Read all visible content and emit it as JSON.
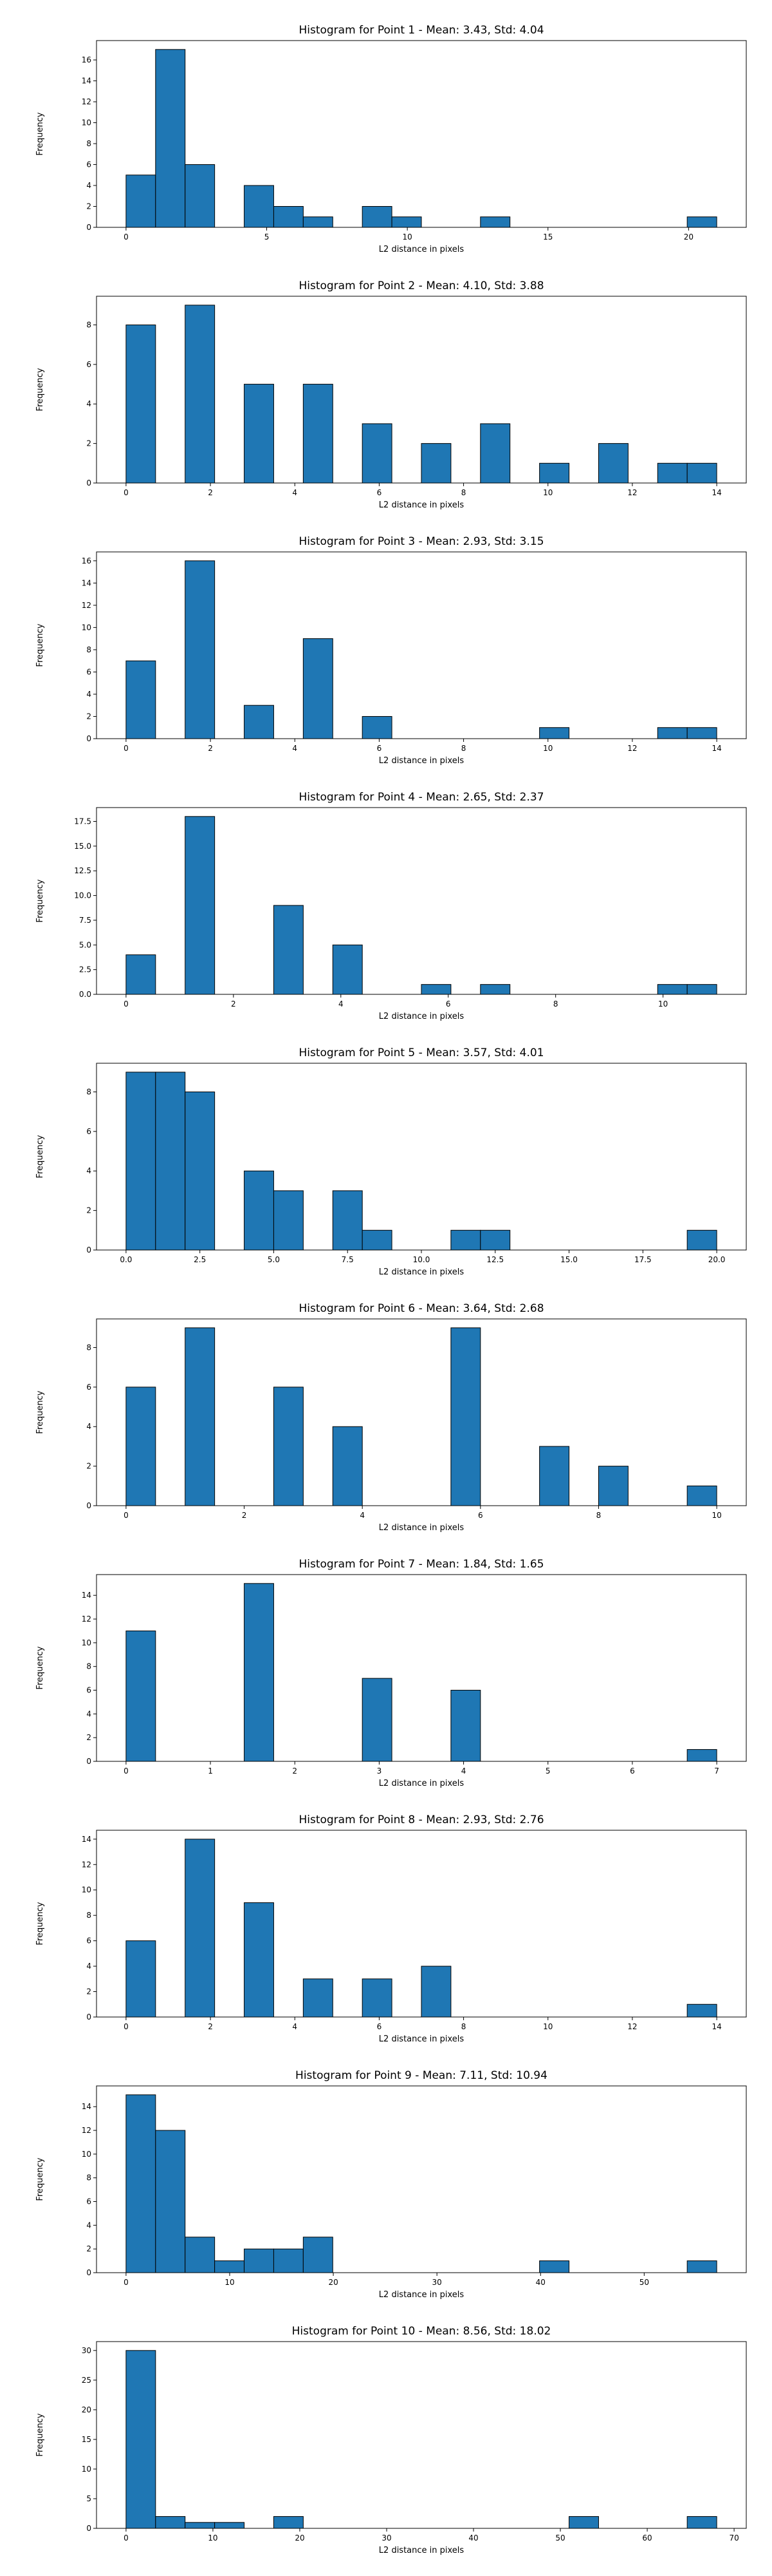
{
  "style": {
    "bar_color": "#1f77b4",
    "edge_color": "#000000",
    "background": "#ffffff"
  },
  "chart_data": [
    {
      "type": "bar",
      "title": "Histogram for Point 1 - Mean: 3.43, Std: 4.04",
      "xlabel": "L2 distance in pixels",
      "ylabel": "Frequency",
      "xlim": [
        -1.05,
        22.05
      ],
      "ylim": [
        0,
        17.85
      ],
      "xticks": [
        0,
        5,
        10,
        15,
        20
      ],
      "xtick_labels": [
        "0",
        "5",
        "10",
        "15",
        "20"
      ],
      "yticks": [
        0,
        2,
        4,
        6,
        8,
        10,
        12,
        14,
        16
      ],
      "ytick_labels": [
        "0",
        "2",
        "4",
        "6",
        "8",
        "10",
        "12",
        "14",
        "16"
      ],
      "bins": [
        0,
        1.05,
        2.1,
        3.15,
        4.2,
        5.25,
        6.3,
        7.35,
        8.4,
        9.45,
        10.5,
        11.55,
        12.6,
        13.65,
        14.7,
        15.75,
        16.8,
        17.85,
        18.9,
        19.95,
        21
      ],
      "counts": [
        5,
        17,
        6,
        0,
        4,
        2,
        1,
        0,
        2,
        1,
        0,
        0,
        1,
        0,
        0,
        0,
        0,
        0,
        0,
        1
      ],
      "grid": false
    },
    {
      "type": "bar",
      "title": "Histogram for Point 2 - Mean: 4.10, Std: 3.88",
      "xlabel": "L2 distance in pixels",
      "ylabel": "Frequency",
      "xlim": [
        -0.7,
        14.7
      ],
      "ylim": [
        0,
        9.45
      ],
      "xticks": [
        0,
        2,
        4,
        6,
        8,
        10,
        12,
        14
      ],
      "xtick_labels": [
        "0",
        "2",
        "4",
        "6",
        "8",
        "10",
        "12",
        "14"
      ],
      "yticks": [
        0,
        2,
        4,
        6,
        8
      ],
      "ytick_labels": [
        "0",
        "2",
        "4",
        "6",
        "8"
      ],
      "bins": [
        0,
        0.7,
        1.4,
        2.1,
        2.8,
        3.5,
        4.2,
        4.9,
        5.6,
        6.3,
        7.0,
        7.7,
        8.4,
        9.1,
        9.8,
        10.5,
        11.2,
        11.9,
        12.6,
        13.3,
        14.0
      ],
      "counts": [
        8,
        0,
        9,
        0,
        5,
        0,
        5,
        0,
        3,
        0,
        2,
        0,
        3,
        0,
        1,
        0,
        2,
        0,
        1,
        1
      ],
      "grid": false
    },
    {
      "type": "bar",
      "title": "Histogram for Point 3 - Mean: 2.93, Std: 3.15",
      "xlabel": "L2 distance in pixels",
      "ylabel": "Frequency",
      "xlim": [
        -0.7,
        14.7
      ],
      "ylim": [
        0,
        16.8
      ],
      "xticks": [
        0,
        2,
        4,
        6,
        8,
        10,
        12,
        14
      ],
      "xtick_labels": [
        "0",
        "2",
        "4",
        "6",
        "8",
        "10",
        "12",
        "14"
      ],
      "yticks": [
        0,
        2,
        4,
        6,
        8,
        10,
        12,
        14,
        16
      ],
      "ytick_labels": [
        "0",
        "2",
        "4",
        "6",
        "8",
        "10",
        "12",
        "14",
        "16"
      ],
      "bins": [
        0,
        0.7,
        1.4,
        2.1,
        2.8,
        3.5,
        4.2,
        4.9,
        5.6,
        6.3,
        7.0,
        7.7,
        8.4,
        9.1,
        9.8,
        10.5,
        11.2,
        11.9,
        12.6,
        13.3,
        14.0
      ],
      "counts": [
        7,
        0,
        16,
        0,
        3,
        0,
        9,
        0,
        2,
        0,
        0,
        0,
        0,
        0,
        1,
        0,
        0,
        0,
        1,
        1
      ],
      "grid": false
    },
    {
      "type": "bar",
      "title": "Histogram for Point 4 - Mean: 2.65, Std: 2.37",
      "xlabel": "L2 distance in pixels",
      "ylabel": "Frequency",
      "xlim": [
        -0.55,
        11.55
      ],
      "ylim": [
        0,
        18.9
      ],
      "xticks": [
        0,
        2,
        4,
        6,
        8,
        10
      ],
      "xtick_labels": [
        "0",
        "2",
        "4",
        "6",
        "8",
        "10"
      ],
      "yticks": [
        0,
        2.5,
        5,
        7.5,
        10,
        12.5,
        15,
        17.5
      ],
      "ytick_labels": [
        "0.0",
        "2.5",
        "5.0",
        "7.5",
        "10.0",
        "12.5",
        "15.0",
        "17.5"
      ],
      "bins": [
        0,
        0.55,
        1.1,
        1.65,
        2.2,
        2.75,
        3.3,
        3.85,
        4.4,
        4.95,
        5.5,
        6.05,
        6.6,
        7.15,
        7.7,
        8.25,
        8.8,
        9.35,
        9.9,
        10.45,
        11.0
      ],
      "counts": [
        4,
        0,
        18,
        0,
        0,
        9,
        0,
        5,
        0,
        0,
        1,
        0,
        1,
        0,
        0,
        0,
        0,
        0,
        1,
        1
      ],
      "grid": false
    },
    {
      "type": "bar",
      "title": "Histogram for Point 5 - Mean: 3.57, Std: 4.01",
      "xlabel": "L2 distance in pixels",
      "ylabel": "Frequency",
      "xlim": [
        -1.0,
        21.0
      ],
      "ylim": [
        0,
        9.45
      ],
      "xticks": [
        0,
        2.5,
        5,
        7.5,
        10,
        12.5,
        15,
        17.5,
        20
      ],
      "xtick_labels": [
        "0.0",
        "2.5",
        "5.0",
        "7.5",
        "10.0",
        "12.5",
        "15.0",
        "17.5",
        "20.0"
      ],
      "yticks": [
        0,
        2,
        4,
        6,
        8
      ],
      "ytick_labels": [
        "0",
        "2",
        "4",
        "6",
        "8"
      ],
      "bins": [
        0,
        1,
        2,
        3,
        4,
        5,
        6,
        7,
        8,
        9,
        10,
        11,
        12,
        13,
        14,
        15,
        16,
        17,
        18,
        19,
        20
      ],
      "counts": [
        9,
        9,
        8,
        0,
        4,
        3,
        0,
        3,
        1,
        0,
        0,
        1,
        1,
        0,
        0,
        0,
        0,
        0,
        0,
        1
      ],
      "grid": false
    },
    {
      "type": "bar",
      "title": "Histogram for Point 6 - Mean: 3.64, Std: 2.68",
      "xlabel": "L2 distance in pixels",
      "ylabel": "Frequency",
      "xlim": [
        -0.5,
        10.5
      ],
      "ylim": [
        0,
        9.45
      ],
      "xticks": [
        0,
        2,
        4,
        6,
        8,
        10
      ],
      "xtick_labels": [
        "0",
        "2",
        "4",
        "6",
        "8",
        "10"
      ],
      "yticks": [
        0,
        2,
        4,
        6,
        8
      ],
      "ytick_labels": [
        "0",
        "2",
        "4",
        "6",
        "8"
      ],
      "bins": [
        0,
        0.5,
        1.0,
        1.5,
        2.0,
        2.5,
        3.0,
        3.5,
        4.0,
        4.5,
        5.0,
        5.5,
        6.0,
        6.5,
        7.0,
        7.5,
        8.0,
        8.5,
        9.0,
        9.5,
        10.0
      ],
      "counts": [
        6,
        0,
        9,
        0,
        0,
        6,
        0,
        4,
        0,
        0,
        0,
        9,
        0,
        0,
        3,
        0,
        2,
        0,
        0,
        1
      ],
      "grid": false
    },
    {
      "type": "bar",
      "title": "Histogram for Point 7 - Mean: 1.84, Std: 1.65",
      "xlabel": "L2 distance in pixels",
      "ylabel": "Frequency",
      "xlim": [
        -0.35,
        7.35
      ],
      "ylim": [
        0,
        15.75
      ],
      "xticks": [
        0,
        1,
        2,
        3,
        4,
        5,
        6,
        7
      ],
      "xtick_labels": [
        "0",
        "1",
        "2",
        "3",
        "4",
        "5",
        "6",
        "7"
      ],
      "yticks": [
        0,
        2,
        4,
        6,
        8,
        10,
        12,
        14
      ],
      "ytick_labels": [
        "0",
        "2",
        "4",
        "6",
        "8",
        "10",
        "12",
        "14"
      ],
      "bins": [
        0,
        0.35,
        0.7,
        1.05,
        1.4,
        1.75,
        2.1,
        2.45,
        2.8,
        3.15,
        3.5,
        3.85,
        4.2,
        4.55,
        4.9,
        5.25,
        5.6,
        5.95,
        6.3,
        6.65,
        7.0
      ],
      "counts": [
        11,
        0,
        0,
        0,
        15,
        0,
        0,
        0,
        7,
        0,
        0,
        6,
        0,
        0,
        0,
        0,
        0,
        0,
        0,
        1
      ],
      "grid": false
    },
    {
      "type": "bar",
      "title": "Histogram for Point 8 - Mean: 2.93, Std: 2.76",
      "xlabel": "L2 distance in pixels",
      "ylabel": "Frequency",
      "xlim": [
        -0.7,
        14.7
      ],
      "ylim": [
        0,
        14.7
      ],
      "xticks": [
        0,
        2,
        4,
        6,
        8,
        10,
        12,
        14
      ],
      "xtick_labels": [
        "0",
        "2",
        "4",
        "6",
        "8",
        "10",
        "12",
        "14"
      ],
      "yticks": [
        0,
        2,
        4,
        6,
        8,
        10,
        12,
        14
      ],
      "ytick_labels": [
        "0",
        "2",
        "4",
        "6",
        "8",
        "10",
        "12",
        "14"
      ],
      "bins": [
        0,
        0.7,
        1.4,
        2.1,
        2.8,
        3.5,
        4.2,
        4.9,
        5.6,
        6.3,
        7.0,
        7.7,
        8.4,
        9.1,
        9.8,
        10.5,
        11.2,
        11.9,
        12.6,
        13.3,
        14.0
      ],
      "counts": [
        6,
        0,
        14,
        0,
        9,
        0,
        3,
        0,
        3,
        0,
        4,
        0,
        0,
        0,
        0,
        0,
        0,
        0,
        0,
        1
      ],
      "grid": false
    },
    {
      "type": "bar",
      "title": "Histogram for Point 9 - Mean: 7.11, Std: 10.94",
      "xlabel": "L2 distance in pixels",
      "ylabel": "Frequency",
      "xlim": [
        -2.85,
        59.85
      ],
      "ylim": [
        0,
        15.75
      ],
      "xticks": [
        0,
        10,
        20,
        30,
        40,
        50
      ],
      "xtick_labels": [
        "0",
        "10",
        "20",
        "30",
        "40",
        "50"
      ],
      "yticks": [
        0,
        2,
        4,
        6,
        8,
        10,
        12,
        14
      ],
      "ytick_labels": [
        "0",
        "2",
        "4",
        "6",
        "8",
        "10",
        "12",
        "14"
      ],
      "bins": [
        0,
        2.85,
        5.7,
        8.55,
        11.4,
        14.25,
        17.1,
        19.95,
        22.8,
        25.65,
        28.5,
        31.35,
        34.2,
        37.05,
        39.9,
        42.75,
        45.6,
        48.45,
        51.3,
        54.15,
        57.0
      ],
      "counts": [
        15,
        12,
        3,
        1,
        2,
        2,
        3,
        0,
        0,
        0,
        0,
        0,
        0,
        0,
        1,
        0,
        0,
        0,
        0,
        1
      ],
      "grid": false
    },
    {
      "type": "bar",
      "title": "Histogram for Point 10 - Mean: 8.56, Std: 18.02",
      "xlabel": "L2 distance in pixels",
      "ylabel": "Frequency",
      "xlim": [
        -3.4,
        71.4
      ],
      "ylim": [
        0,
        31.5
      ],
      "xticks": [
        0,
        10,
        20,
        30,
        40,
        50,
        60,
        70
      ],
      "xtick_labels": [
        "0",
        "10",
        "20",
        "30",
        "40",
        "50",
        "60",
        "70"
      ],
      "yticks": [
        0,
        5,
        10,
        15,
        20,
        25,
        30
      ],
      "ytick_labels": [
        "0",
        "5",
        "10",
        "15",
        "20",
        "25",
        "30"
      ],
      "bins": [
        0,
        3.4,
        6.8,
        10.2,
        13.6,
        17.0,
        20.4,
        23.8,
        27.2,
        30.6,
        34.0,
        37.4,
        40.8,
        44.2,
        47.6,
        51.0,
        54.4,
        57.8,
        61.2,
        64.6,
        68.0
      ],
      "counts": [
        30,
        2,
        1,
        1,
        0,
        2,
        0,
        0,
        0,
        0,
        0,
        0,
        0,
        0,
        0,
        2,
        0,
        0,
        0,
        2
      ],
      "grid": false
    }
  ]
}
